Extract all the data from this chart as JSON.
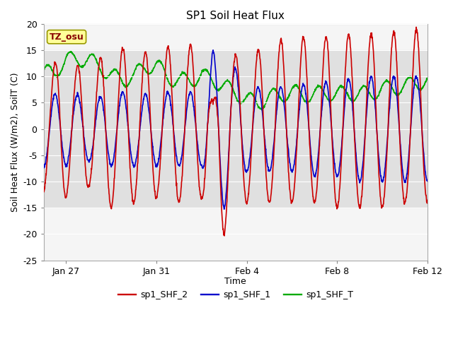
{
  "title": "SP1 Soil Heat Flux",
  "xlabel": "Time",
  "ylabel": "Soil Heat Flux (W/m2), SoilT (C)",
  "ylim": [
    -25,
    20
  ],
  "yticks": [
    -25,
    -20,
    -15,
    -10,
    -5,
    0,
    5,
    10,
    15,
    20
  ],
  "legend_labels": [
    "sp1_SHF_2",
    "sp1_SHF_1",
    "sp1_SHF_T"
  ],
  "legend_colors": [
    "#cc0000",
    "#0000cc",
    "#00aa00"
  ],
  "tz_label": "TZ_osu",
  "fig_bg": "#ffffff",
  "plot_bg": "#f5f5f5",
  "band_color": "#e0e0e0",
  "grid_color": "#cccccc",
  "annotation_box_color": "#ffff99",
  "annotation_text_color": "#880000",
  "annotation_border_color": "#999900",
  "line_width": 1.2,
  "n_days": 17,
  "pts_per_day": 96,
  "xtick_positions": [
    1,
    5,
    9,
    13,
    17
  ],
  "xtick_labels": [
    "Jan 27",
    "Jan 31",
    "Feb 4",
    "Feb 8",
    "Feb 12"
  ],
  "title_fontsize": 11,
  "axis_fontsize": 9,
  "tick_fontsize": 9
}
